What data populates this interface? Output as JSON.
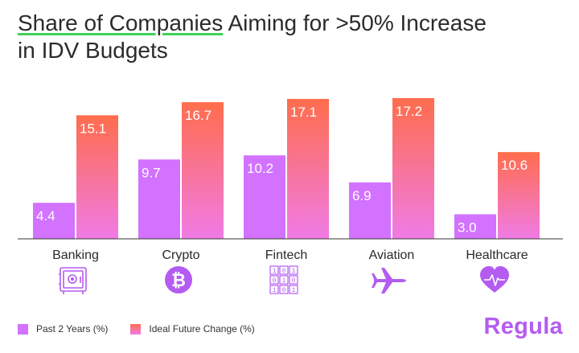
{
  "title": {
    "part1": "Share of Companies",
    "part2": " Aiming for >50% Increase",
    "line2": "in IDV Budgets"
  },
  "brand": "Regula",
  "legend": [
    {
      "label": "Past 2 Years (%)",
      "color": "#d272ff"
    },
    {
      "label": "Ideal Future Change (%)",
      "color": "#ff6d4c"
    }
  ],
  "icons": [
    "safe-icon",
    "bitcoin-icon",
    "binary-icon",
    "airplane-icon",
    "heart-pulse-icon"
  ],
  "colors": {
    "past_bar": "#d272ff",
    "future_top": "#ff6d4c",
    "future_bottom": "#f07be6",
    "icon": "#b45cf2",
    "axis": "#333333",
    "label_text": "#ffffff"
  },
  "chart_data": {
    "type": "bar",
    "categories": [
      "Banking",
      "Crypto",
      "Fintech",
      "Aviation",
      "Healthcare"
    ],
    "series": [
      {
        "name": "Past 2 Years (%)",
        "values": [
          4.4,
          9.7,
          10.2,
          6.9,
          3.0
        ]
      },
      {
        "name": "Ideal Future Change (%)",
        "values": [
          15.1,
          16.7,
          17.1,
          17.2,
          10.6
        ]
      }
    ],
    "value_labels": [
      [
        "4.4",
        "9.7",
        "10.2",
        "6.9",
        "3.0"
      ],
      [
        "15.1",
        "16.7",
        "17.1",
        "17.2",
        "10.6"
      ]
    ],
    "ylim": [
      0,
      17.2
    ],
    "grid": false
  }
}
